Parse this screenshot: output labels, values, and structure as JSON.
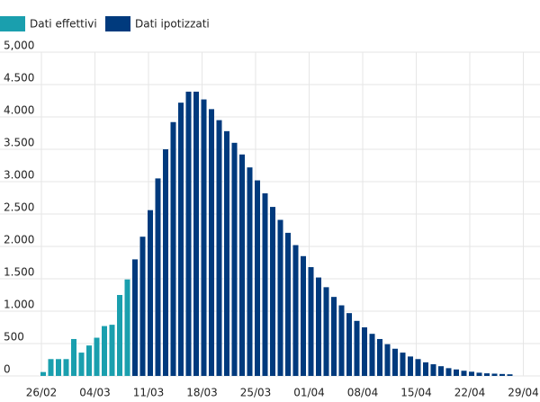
{
  "chart_data": {
    "type": "bar",
    "categories": [
      "26/02",
      null,
      null,
      null,
      null,
      null,
      null,
      "04/03",
      null,
      null,
      null,
      null,
      null,
      null,
      "11/03",
      null,
      null,
      null,
      null,
      null,
      null,
      "18/03",
      null,
      null,
      null,
      null,
      null,
      null,
      "25/03",
      null,
      null,
      null,
      null,
      null,
      null,
      "01/04",
      null,
      null,
      null,
      null,
      null,
      null,
      "08/04",
      null,
      null,
      null,
      null,
      null,
      null,
      "15/04",
      null,
      null,
      null,
      null,
      null,
      null,
      "22/04",
      null,
      null,
      null,
      null,
      null,
      null,
      "29/04"
    ],
    "series": [
      {
        "name": "Dati effettivi",
        "color": "#1a9fae",
        "values": [
          60,
          260,
          260,
          260,
          570,
          360,
          470,
          590,
          770,
          790,
          1250,
          1490,
          null,
          null,
          null,
          null,
          null,
          null,
          null,
          null,
          null,
          null,
          null,
          null,
          null,
          null,
          null,
          null,
          null,
          null,
          null,
          null,
          null,
          null,
          null,
          null,
          null,
          null,
          null,
          null,
          null,
          null,
          null,
          null,
          null,
          null,
          null,
          null,
          null,
          null,
          null,
          null,
          null,
          null,
          null,
          null,
          null,
          null,
          null,
          null,
          null,
          null,
          null,
          null
        ]
      },
      {
        "name": "Dati ipotizzati",
        "color": "#003a7d",
        "values": [
          null,
          null,
          null,
          null,
          null,
          null,
          null,
          null,
          null,
          null,
          null,
          null,
          1800,
          2150,
          2560,
          3050,
          3500,
          3920,
          4220,
          4390,
          4390,
          4270,
          4120,
          3950,
          3780,
          3600,
          3420,
          3220,
          3020,
          2820,
          2610,
          2410,
          2210,
          2020,
          1850,
          1680,
          1520,
          1370,
          1220,
          1090,
          970,
          850,
          750,
          650,
          570,
          490,
          420,
          360,
          300,
          260,
          210,
          180,
          150,
          120,
          100,
          80,
          65,
          50,
          40,
          35,
          30,
          25,
          null,
          null
        ]
      }
    ],
    "ylim": [
      0,
      5000
    ],
    "yticks": [
      0,
      500,
      {
        "value": 1000,
        "label": "1.000"
      },
      {
        "value": 1500,
        "label": "1.500"
      },
      {
        "value": 2000,
        "label": "2.000"
      },
      {
        "value": 2500,
        "label": "2.500"
      },
      {
        "value": 3000,
        "label": "3.000"
      },
      {
        "value": 3500,
        "label": "3.500"
      },
      {
        "value": 4000,
        "label": "4.000"
      },
      {
        "value": 4500,
        "label": "4.500"
      },
      {
        "value": 5000,
        "label": "5,000"
      }
    ],
    "grid": true
  }
}
